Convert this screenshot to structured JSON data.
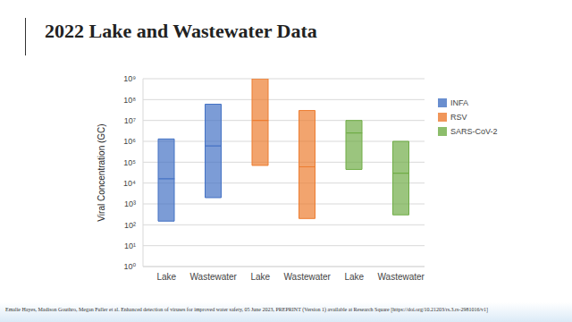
{
  "chart_data": {
    "type": "bar",
    "title": "2022 Lake and Wastewater Data",
    "y_label": "Viral Concentration (GC)",
    "annotations": [
      "Emalie Hayes, Madison Gouthro, Megan Fuller et al. Enhanced detection of viruses for improved water safety, 05 June 2023, PREPRINT (Version 1) available at Research Square [https://doi.org/10.21203/rs.3.rs-2981016/v1]"
    ],
    "categories": [
      "Lake",
      "Wastewater",
      "Lake",
      "Wastewater",
      "Lake",
      "Wastewater"
    ],
    "series": [
      {
        "name": "INFA",
        "color": "#4472c4",
        "values": [
          16000,
          600000,
          null,
          null,
          null,
          null
        ],
        "min": [
          150,
          2000,
          null,
          null,
          null,
          null
        ],
        "max": [
          1300000,
          60000000,
          null,
          null,
          null,
          null
        ]
      },
      {
        "name": "RSV",
        "color": "#ed7d31",
        "values": [
          null,
          null,
          10000000,
          60000,
          null,
          null
        ],
        "min": [
          null,
          null,
          70000,
          200,
          null,
          null
        ],
        "max": [
          null,
          null,
          1000000000,
          30000000,
          null,
          null
        ]
      },
      {
        "name": "SARS-CoV-2",
        "color": "#70ad47",
        "values": [
          null,
          null,
          null,
          null,
          2500000,
          30000
        ],
        "min": [
          null,
          null,
          null,
          null,
          45000,
          300
        ],
        "max": [
          null,
          null,
          null,
          null,
          10000000,
          1000000
        ]
      }
    ],
    "ylim": [
      1,
      1000000000
    ],
    "yticks": [
      {
        "value": 1,
        "label": "10⁰"
      },
      {
        "value": 10,
        "label": "10¹"
      },
      {
        "value": 100,
        "label": "10²"
      },
      {
        "value": 1000,
        "label": "10³"
      },
      {
        "value": 10000,
        "label": "10⁴"
      },
      {
        "value": 100000,
        "label": "10⁵"
      },
      {
        "value": 1000000,
        "label": "10⁶"
      },
      {
        "value": 10000000,
        "label": "10⁷"
      },
      {
        "value": 100000000,
        "label": "10⁸"
      },
      {
        "value": 1000000000,
        "label": "10⁹"
      }
    ],
    "log": "y",
    "grid": true,
    "legend": "right"
  }
}
